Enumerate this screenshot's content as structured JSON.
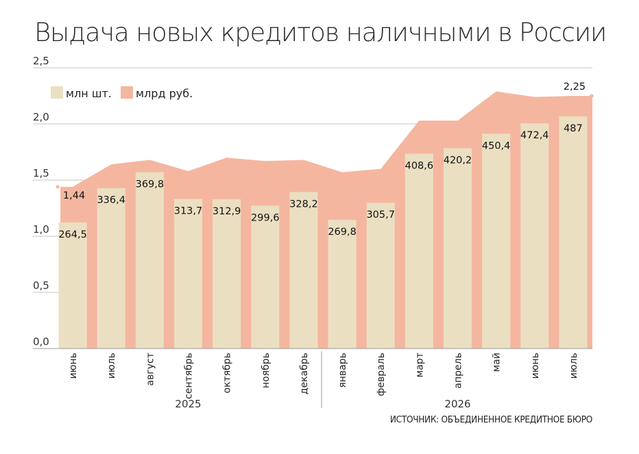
{
  "title": "Выдача новых кредитов наличными в России",
  "source": "ИСТОЧНИК: ОБЪЕДИНЕННОЕ КРЕДИТНОЕ БЮРО",
  "colors": {
    "bars": "#ebdfc2",
    "area": "#f5b6a0",
    "grid": "#c4c4c4",
    "axis": "#9a9a9a"
  },
  "chart_data": {
    "type": "bar",
    "categories": [
      "июнь",
      "июль",
      "август",
      "сентябрь",
      "октябрь",
      "ноябрь",
      "декабрь",
      "январь",
      "февраль",
      "март",
      "апрель",
      "май",
      "июнь",
      "июль"
    ],
    "groups": [
      {
        "label": "2025",
        "count": 7
      },
      {
        "label": "2026",
        "count": 7
      }
    ],
    "series": [
      {
        "name": "млн шт.",
        "type": "bar",
        "values": [
          264.5,
          336.4,
          369.8,
          313.7,
          312.9,
          299.6,
          328.2,
          269.8,
          305.7,
          408.6,
          420.2,
          450.4,
          472.4,
          487
        ],
        "labels": [
          "264,5",
          "336,4",
          "369,8",
          "313,7",
          "312,9",
          "299,6",
          "328,2",
          "269,8",
          "305,7",
          "408,6",
          "420,2",
          "450,4",
          "472,4",
          "487"
        ]
      },
      {
        "name": "млрд руб.",
        "type": "area",
        "values": [
          1.44,
          1.64,
          1.68,
          1.58,
          1.7,
          1.67,
          1.68,
          1.57,
          1.6,
          2.03,
          2.03,
          2.29,
          2.24,
          2.25
        ],
        "labels": [
          "1,44",
          "",
          "",
          "",
          "",
          "",
          "",
          "",
          "",
          "",
          "",
          "",
          "",
          "2,25"
        ]
      }
    ],
    "yticks": [
      "0,0",
      "0,5",
      "1,0",
      "1,5",
      "2,0",
      "2,5"
    ],
    "ylim": [
      0,
      2.5
    ],
    "grid": true,
    "legend": "top-left"
  }
}
